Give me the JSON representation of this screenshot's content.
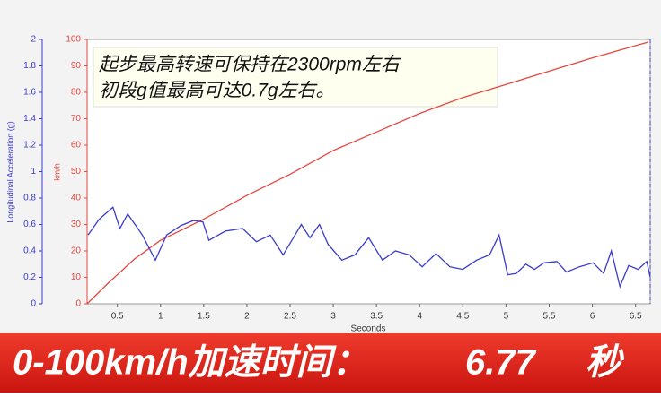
{
  "chart_data": {
    "type": "line",
    "annotations": [
      "起步最高转速可保持在2300rpm左右",
      "初段g值最高可达0.7g左右。"
    ],
    "xlabel": "Seconds",
    "ylabel": "km/h",
    "y2label": "Longitudinal Acceleration (g)",
    "xlim": [
      0.15,
      6.67
    ],
    "xticks": [
      0.5,
      1,
      1.5,
      2,
      2.5,
      3,
      3.5,
      4,
      4.5,
      5,
      5.5,
      6,
      6.5
    ],
    "ylim": [
      0,
      100
    ],
    "yticks": [
      0,
      10,
      20,
      30,
      40,
      50,
      60,
      70,
      80,
      90,
      100
    ],
    "y2lim": [
      0,
      2
    ],
    "y2ticks": [
      0,
      0.2,
      0.4,
      0.6,
      0.8,
      1,
      1.2,
      1.4,
      1.6,
      1.8,
      2
    ],
    "grid": false,
    "series": [
      {
        "color": "#e8463e",
        "x": [
          0.15,
          0.4,
          0.7,
          1.0,
          1.5,
          2.0,
          2.5,
          3.0,
          3.5,
          4.0,
          4.5,
          5.0,
          5.5,
          6.0,
          6.65
        ],
        "values": [
          0,
          8,
          17,
          24,
          32,
          41,
          49,
          58,
          65,
          72,
          78,
          83,
          88,
          93,
          99
        ]
      },
      {
        "color": "#3b3bcc",
        "axis": "y2",
        "x": [
          0.16,
          0.29,
          0.45,
          0.53,
          0.62,
          0.79,
          0.94,
          1.07,
          1.23,
          1.38,
          1.49,
          1.56,
          1.75,
          1.95,
          2.11,
          2.27,
          2.42,
          2.63,
          2.73,
          2.84,
          2.94,
          3.1,
          3.25,
          3.41,
          3.57,
          3.72,
          3.88,
          4.03,
          4.19,
          4.35,
          4.5,
          4.66,
          4.81,
          4.92,
          5.02,
          5.12,
          5.23,
          5.33,
          5.44,
          5.59,
          5.7,
          5.85,
          6.01,
          6.13,
          6.22,
          6.32,
          6.42,
          6.53,
          6.63,
          6.67
        ],
        "values": [
          0.52,
          0.64,
          0.73,
          0.57,
          0.68,
          0.52,
          0.33,
          0.52,
          0.59,
          0.63,
          0.62,
          0.48,
          0.55,
          0.57,
          0.47,
          0.52,
          0.37,
          0.6,
          0.5,
          0.6,
          0.45,
          0.33,
          0.37,
          0.5,
          0.33,
          0.4,
          0.37,
          0.28,
          0.38,
          0.28,
          0.26,
          0.33,
          0.37,
          0.52,
          0.22,
          0.23,
          0.3,
          0.26,
          0.31,
          0.32,
          0.24,
          0.28,
          0.31,
          0.23,
          0.4,
          0.13,
          0.29,
          0.26,
          0.32,
          0.2
        ]
      }
    ]
  },
  "banner": {
    "label": "0-100km/h加速时间：",
    "value": 6.77,
    "unit": "秒"
  }
}
